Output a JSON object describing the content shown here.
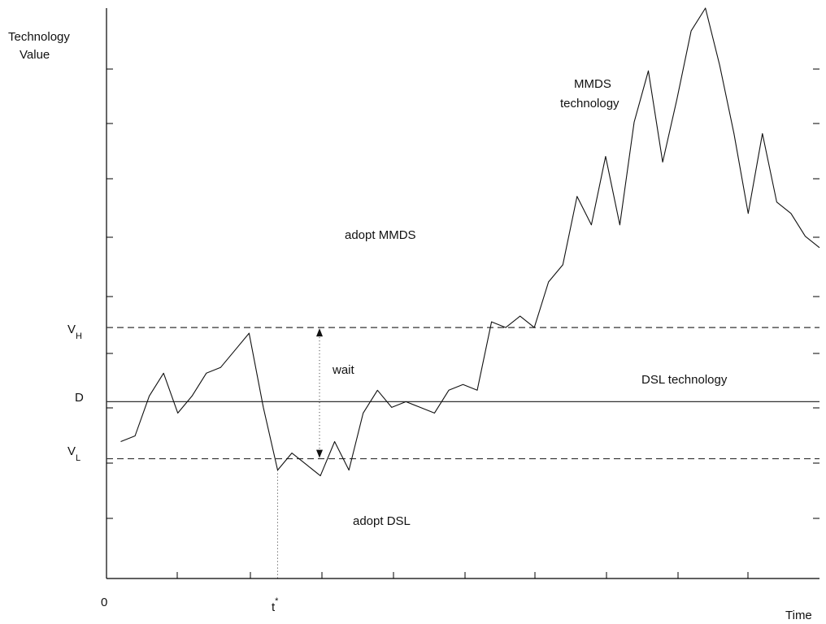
{
  "chart_data": {
    "type": "line",
    "ylabel_line1": "Technology",
    "ylabel_line2": "Value",
    "xlabel": "Time",
    "x_origin_label": "0",
    "xlim": [
      0,
      100
    ],
    "ylim": [
      0,
      100
    ],
    "levels": {
      "VH": {
        "letter": "V",
        "sub": "H",
        "value": 44
      },
      "D": {
        "letter": "D",
        "value": 31
      },
      "VL": {
        "letter": "V",
        "sub": "L",
        "value": 21
      }
    },
    "t_star": {
      "letter": "t",
      "sup": "*",
      "x": 24
    },
    "annotations": {
      "adopt_mmds": "adopt MMDS",
      "mmds_line1": "MMDS",
      "mmds_line2": "technology",
      "wait": "wait",
      "dsl_technology": "DSL technology",
      "adopt_dsl": "adopt DSL"
    },
    "series": [
      {
        "x": [
          2,
          4,
          6,
          8,
          10,
          12,
          14,
          16,
          18,
          20,
          22,
          24,
          26,
          28,
          30,
          32,
          34,
          36,
          38,
          40,
          42,
          44,
          46,
          48,
          50,
          52,
          54,
          56,
          58,
          60,
          62,
          64,
          66,
          68,
          70,
          72,
          74,
          76,
          78,
          80,
          82,
          84,
          86,
          88,
          90,
          92,
          94,
          96,
          98,
          100
        ],
        "y": [
          24,
          25,
          32,
          36,
          29,
          32,
          36,
          37,
          40,
          43,
          30,
          19,
          22,
          20,
          18,
          24,
          19,
          29,
          33,
          30,
          31,
          30,
          29,
          33,
          34,
          33,
          45,
          44,
          46,
          44,
          52,
          55,
          67,
          62,
          74,
          62,
          80,
          89,
          73,
          84,
          96,
          102,
          90,
          78,
          64,
          78,
          66,
          64,
          60,
          58
        ]
      }
    ]
  }
}
